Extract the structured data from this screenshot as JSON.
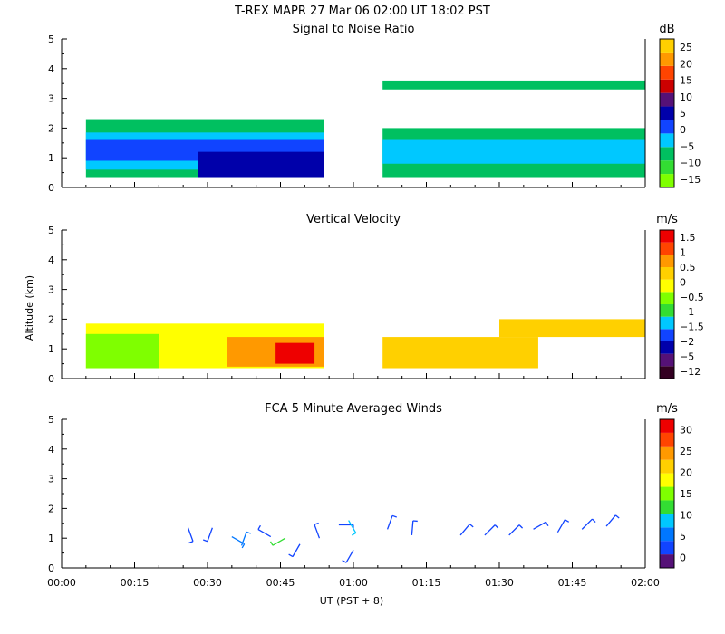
{
  "header": "T-REX   MAPR 27 Mar 06   02:00 UT   18:02   PST",
  "xaxis": {
    "label": "UT  (PST + 8)",
    "ticks": [
      "00:00",
      "00:15",
      "00:30",
      "00:45",
      "01:00",
      "01:15",
      "01:30",
      "01:45",
      "02:00"
    ],
    "range_min": [
      0,
      120
    ]
  },
  "yaxis": {
    "label": "Altitude (km)",
    "ticks": [
      "0",
      "1",
      "2",
      "3",
      "4",
      "5"
    ],
    "range_km": [
      0,
      5
    ]
  },
  "colors": {
    "snr": [
      "#7fff00",
      "#33dd33",
      "#00c060",
      "#00c8ff",
      "#1144ff",
      "#0000aa",
      "#551177",
      "#cc0000",
      "#ff4400",
      "#ff9900",
      "#ffd000"
    ],
    "vv": [
      "#330022",
      "#551177",
      "#0000aa",
      "#1144ff",
      "#00c8ff",
      "#33dd33",
      "#7fff00",
      "#ffff00",
      "#ffd000",
      "#ff9900",
      "#ff4400",
      "#ee0000"
    ],
    "wind": [
      "#551177",
      "#1144ff",
      "#0077ff",
      "#00c8ff",
      "#33dd33",
      "#7fff00",
      "#ffff00",
      "#ffd000",
      "#ff9900",
      "#ff4400",
      "#ee0000"
    ]
  },
  "chart_data": [
    {
      "type": "heatmap",
      "title": "Signal to Noise Ratio",
      "units": "dB",
      "colorbar_labels": [
        "25",
        "20",
        "15",
        "10",
        "5",
        "0",
        "−5",
        "−10",
        "−15"
      ],
      "data_gap_min": [
        54,
        66
      ],
      "layers": [
        {
          "t0": 5,
          "t1": 54,
          "z0": 0.35,
          "z1": 2.3,
          "level": "-15"
        },
        {
          "t0": 5,
          "t1": 54,
          "z0": 0.6,
          "z1": 1.85,
          "level": "-10"
        },
        {
          "t0": 5,
          "t1": 54,
          "z0": 0.9,
          "z1": 1.6,
          "level": "-5"
        },
        {
          "t0": 28,
          "t1": 54,
          "z0": 0.35,
          "z1": 1.2,
          "level": "0"
        },
        {
          "t0": 66,
          "t1": 120,
          "z0": 0.35,
          "z1": 2.0,
          "level": "-15"
        },
        {
          "t0": 66,
          "t1": 120,
          "z0": 0.8,
          "z1": 1.6,
          "level": "-10"
        },
        {
          "t0": 66,
          "t1": 120,
          "z0": 3.3,
          "z1": 3.6,
          "level": "-15"
        }
      ]
    },
    {
      "type": "heatmap",
      "title": "Vertical Velocity",
      "units": "m/s",
      "colorbar_labels": [
        "1.5",
        "1",
        "0.5",
        "0",
        "−0.5",
        "−1",
        "−1.5",
        "−2",
        "−5",
        "−12"
      ],
      "data_gap_min": [
        54,
        66
      ],
      "layers": [
        {
          "t0": 5,
          "t1": 54,
          "z0": 0.35,
          "z1": 1.85,
          "level": "-0.5"
        },
        {
          "t0": 5,
          "t1": 20,
          "z0": 0.35,
          "z1": 1.5,
          "level": "-1"
        },
        {
          "t0": 34,
          "t1": 54,
          "z0": 0.4,
          "z1": 1.4,
          "level": "0.5"
        },
        {
          "t0": 44,
          "t1": 52,
          "z0": 0.5,
          "z1": 1.2,
          "level": "1.5"
        },
        {
          "t0": 66,
          "t1": 98,
          "z0": 0.35,
          "z1": 1.4,
          "level": "0"
        },
        {
          "t0": 90,
          "t1": 120,
          "z0": 1.4,
          "z1": 2.0,
          "level": "0"
        }
      ]
    },
    {
      "type": "barbs",
      "title": "FCA 5 Minute Averaged Winds",
      "units": "m/s",
      "colorbar_labels": [
        "30",
        "25",
        "20",
        "15",
        "10",
        "5",
        "0"
      ],
      "speed_range": [
        0,
        30
      ],
      "barbs": [
        {
          "t": 26,
          "z": 1.35,
          "dir": 160,
          "speed": 4
        },
        {
          "t": 31,
          "z": 1.35,
          "dir": 200,
          "speed": 4
        },
        {
          "t": 35,
          "z": 1.05,
          "dir": 120,
          "speed": 7
        },
        {
          "t": 37,
          "z": 0.75,
          "dir": 20,
          "speed": 8
        },
        {
          "t": 43,
          "z": 1.05,
          "dir": 300,
          "speed": 5
        },
        {
          "t": 46,
          "z": 1.0,
          "dir": 240,
          "speed": 12
        },
        {
          "t": 49,
          "z": 0.8,
          "dir": 210,
          "speed": 5
        },
        {
          "t": 53,
          "z": 1.0,
          "dir": 340,
          "speed": 5
        },
        {
          "t": 57,
          "z": 1.45,
          "dir": 90,
          "speed": 4
        },
        {
          "t": 59,
          "z": 1.6,
          "dir": 150,
          "speed": 9
        },
        {
          "t": 60,
          "z": 0.6,
          "dir": 210,
          "speed": 4
        },
        {
          "t": 67,
          "z": 1.3,
          "dir": 20,
          "speed": 5
        },
        {
          "t": 72,
          "z": 1.1,
          "dir": 5,
          "speed": 5
        },
        {
          "t": 82,
          "z": 1.1,
          "dir": 40,
          "speed": 5
        },
        {
          "t": 87,
          "z": 1.1,
          "dir": 45,
          "speed": 5
        },
        {
          "t": 92,
          "z": 1.1,
          "dir": 45,
          "speed": 5
        },
        {
          "t": 97,
          "z": 1.3,
          "dir": 60,
          "speed": 5
        },
        {
          "t": 102,
          "z": 1.2,
          "dir": 30,
          "speed": 5
        },
        {
          "t": 107,
          "z": 1.3,
          "dir": 45,
          "speed": 5
        },
        {
          "t": 112,
          "z": 1.4,
          "dir": 40,
          "speed": 5
        }
      ]
    }
  ]
}
